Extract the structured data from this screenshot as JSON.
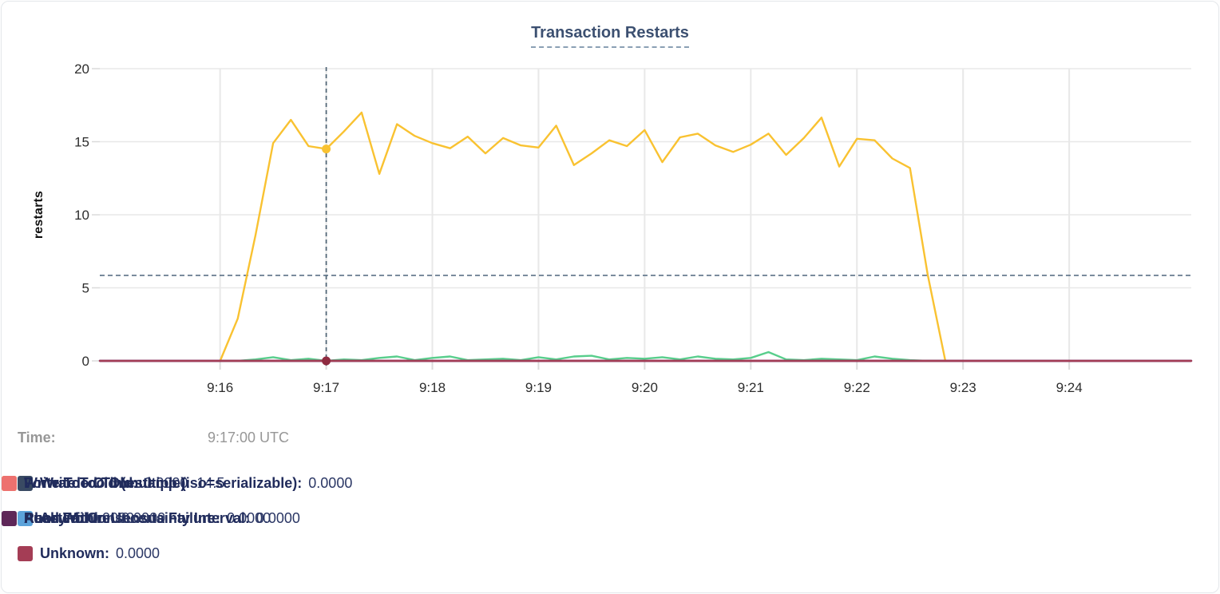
{
  "chart": {
    "title": "Transaction Restarts"
  },
  "time_row": {
    "label": "Time:",
    "value": "9:17:00 UTC"
  },
  "legend": {
    "items": [
      {
        "label": "Write Too Old:",
        "value": "0.0000",
        "color": "#394a63"
      },
      {
        "label": "Write Too Old (multiple):",
        "value": "14.5",
        "color": "#f8c22b"
      },
      {
        "label": "Forwarded Timestamp (iso=serializable):",
        "value": "0.0000",
        "color": "#ed716f"
      },
      {
        "label": "Async Consensus Failure:",
        "value": "0.0000",
        "color": "#5ca3da"
      },
      {
        "label": "Read Within Uncertainty Interval:",
        "value": "0.0000",
        "color": "#57cd8b"
      },
      {
        "label": "Aborted:",
        "value": "0.0000",
        "color": "#d589cb"
      },
      {
        "label": "Push Failure:",
        "value": "0.0000",
        "color": "#5e2758"
      },
      {
        "label": "Unknown:",
        "value": "0.0000",
        "color": "#a43d55"
      }
    ]
  },
  "chart_data": {
    "type": "line",
    "title": "Transaction Restarts",
    "xlabel": "",
    "ylabel": "restarts",
    "ylim": [
      0,
      20
    ],
    "xlim": [
      -68,
      549
    ],
    "x_unit": "seconds since 9:16:00 UTC",
    "grid": true,
    "y_ticks": [
      0,
      5,
      10,
      15,
      20
    ],
    "y_tick_labels": [
      "0",
      "5",
      "10",
      "15",
      "20"
    ],
    "x_tick_positions": [
      0,
      60,
      120,
      180,
      240,
      300,
      360,
      420,
      480
    ],
    "x_tick_labels": [
      "9:16",
      "9:17",
      "9:18",
      "9:19",
      "9:20",
      "9:21",
      "9:22",
      "9:23",
      "9:24"
    ],
    "cursor": {
      "time_label": "9:17:00 UTC",
      "x_seconds": 60,
      "h_line_value": 5.85,
      "highlights": [
        {
          "series": "Write Too Old (multiple)",
          "value": 14.5,
          "color": "#f9c231"
        },
        {
          "series": "Unknown",
          "value": 0,
          "color": "#8f2b40"
        }
      ]
    },
    "series": [
      {
        "name": "Write Too Old",
        "color": "#394a63",
        "points": [
          [
            -68,
            0
          ],
          [
            549,
            0
          ]
        ]
      },
      {
        "name": "Write Too Old (multiple)",
        "color": "#f9c231",
        "points": [
          [
            0,
            0
          ],
          [
            10,
            2.9
          ],
          [
            20,
            8.6
          ],
          [
            30,
            14.9
          ],
          [
            40,
            16.5
          ],
          [
            50,
            14.7
          ],
          [
            60,
            14.5
          ],
          [
            70,
            15.7
          ],
          [
            80,
            17.0
          ],
          [
            90,
            12.8
          ],
          [
            100,
            16.2
          ],
          [
            110,
            15.4
          ],
          [
            120,
            14.9
          ],
          [
            130,
            14.55
          ],
          [
            140,
            15.35
          ],
          [
            150,
            14.2
          ],
          [
            160,
            15.25
          ],
          [
            170,
            14.75
          ],
          [
            180,
            14.6
          ],
          [
            190,
            16.1
          ],
          [
            200,
            13.4
          ],
          [
            210,
            14.2
          ],
          [
            220,
            15.1
          ],
          [
            230,
            14.7
          ],
          [
            240,
            15.8
          ],
          [
            250,
            13.6
          ],
          [
            260,
            15.3
          ],
          [
            270,
            15.55
          ],
          [
            280,
            14.75
          ],
          [
            290,
            14.3
          ],
          [
            300,
            14.8
          ],
          [
            310,
            15.55
          ],
          [
            320,
            14.1
          ],
          [
            330,
            15.25
          ],
          [
            340,
            16.65
          ],
          [
            350,
            13.3
          ],
          [
            360,
            15.2
          ],
          [
            370,
            15.1
          ],
          [
            380,
            13.85
          ],
          [
            390,
            13.2
          ],
          [
            400,
            5.9
          ],
          [
            410,
            0
          ]
        ]
      },
      {
        "name": "Forwarded Timestamp (iso=serializable)",
        "color": "#ed716f",
        "points": [
          [
            -68,
            0
          ],
          [
            549,
            0
          ]
        ]
      },
      {
        "name": "Async Consensus Failure",
        "color": "#5ca3da",
        "points": [
          [
            -68,
            0
          ],
          [
            549,
            0
          ]
        ]
      },
      {
        "name": "Read Within Uncertainty Interval",
        "color": "#58ce8c",
        "points": [
          [
            0,
            0
          ],
          [
            10,
            0
          ],
          [
            20,
            0.1
          ],
          [
            30,
            0.25
          ],
          [
            40,
            0.05
          ],
          [
            50,
            0.15
          ],
          [
            60,
            0
          ],
          [
            70,
            0.1
          ],
          [
            80,
            0.05
          ],
          [
            90,
            0.2
          ],
          [
            100,
            0.3
          ],
          [
            110,
            0.05
          ],
          [
            120,
            0.2
          ],
          [
            130,
            0.3
          ],
          [
            140,
            0.05
          ],
          [
            150,
            0.1
          ],
          [
            160,
            0.15
          ],
          [
            170,
            0.05
          ],
          [
            180,
            0.25
          ],
          [
            190,
            0.1
          ],
          [
            200,
            0.3
          ],
          [
            210,
            0.35
          ],
          [
            220,
            0.1
          ],
          [
            230,
            0.2
          ],
          [
            240,
            0.15
          ],
          [
            250,
            0.25
          ],
          [
            260,
            0.1
          ],
          [
            270,
            0.3
          ],
          [
            280,
            0.15
          ],
          [
            290,
            0.1
          ],
          [
            300,
            0.2
          ],
          [
            310,
            0.6
          ],
          [
            320,
            0.1
          ],
          [
            330,
            0.05
          ],
          [
            340,
            0.15
          ],
          [
            350,
            0.1
          ],
          [
            360,
            0.05
          ],
          [
            370,
            0.3
          ],
          [
            380,
            0.15
          ],
          [
            390,
            0.05
          ],
          [
            400,
            0
          ],
          [
            410,
            0
          ]
        ]
      },
      {
        "name": "Aborted",
        "color": "#d589cb",
        "points": [
          [
            -68,
            0
          ],
          [
            549,
            0
          ]
        ]
      },
      {
        "name": "Push Failure",
        "color": "#5e2758",
        "points": [
          [
            -68,
            0
          ],
          [
            549,
            0
          ]
        ]
      },
      {
        "name": "Unknown",
        "color": "#a43d55",
        "points": [
          [
            -68,
            0
          ],
          [
            549,
            0
          ]
        ]
      }
    ]
  }
}
